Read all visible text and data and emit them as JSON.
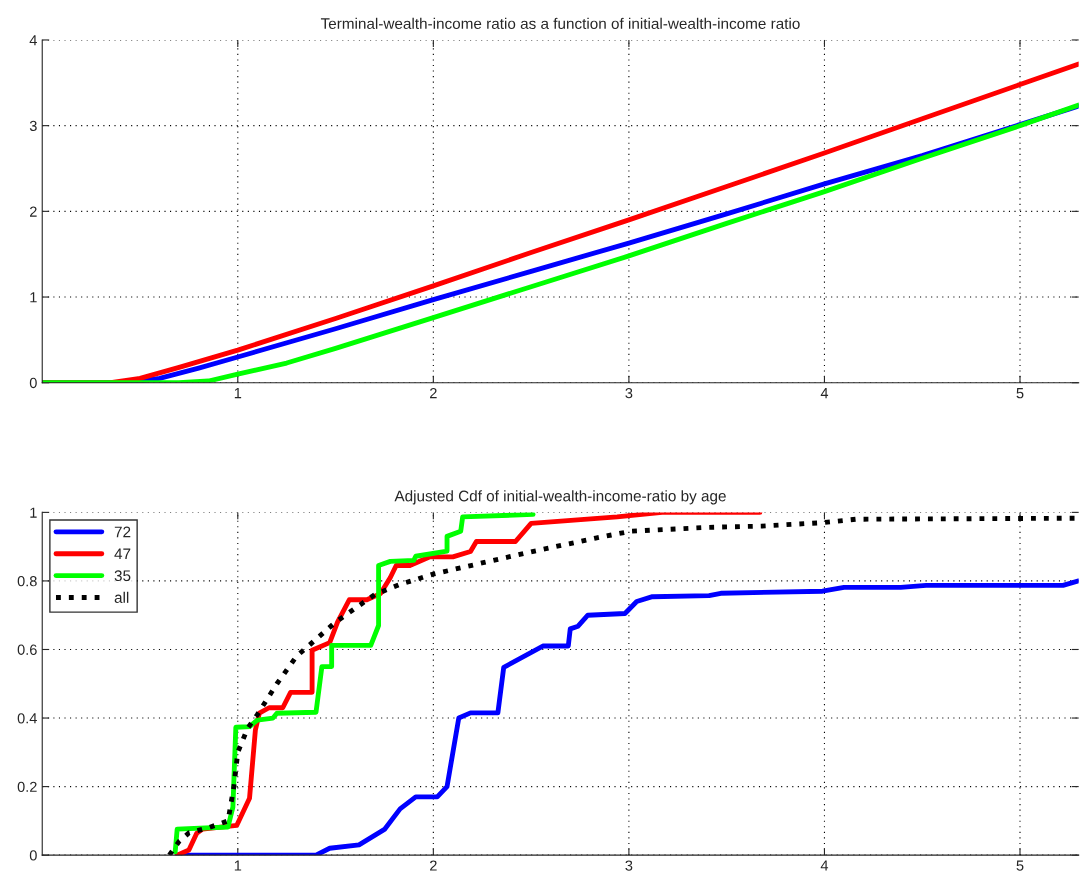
{
  "chart_data": [
    {
      "type": "line",
      "title": "Terminal-wealth-income ratio as a function of initial-wealth-income ratio",
      "xlim": [
        0,
        5.3
      ],
      "ylim": [
        0,
        4
      ],
      "xticks": [
        1,
        2,
        3,
        4,
        5
      ],
      "yticks": [
        0,
        1,
        2,
        3,
        4
      ],
      "grid": true,
      "legend": false,
      "series": [
        {
          "color": "#0000ff",
          "line_style": "solid",
          "x": [
            0,
            0.4,
            0.5,
            0.6,
            0.8,
            1,
            1.5,
            2,
            2.5,
            3,
            3.5,
            4,
            4.5,
            5.3
          ],
          "values": [
            0,
            0,
            0.02,
            0.05,
            0.17,
            0.3,
            0.63,
            0.97,
            1.3,
            1.63,
            1.97,
            2.32,
            2.65,
            3.23
          ]
        },
        {
          "color": "#ff0000",
          "line_style": "solid",
          "x": [
            0,
            0.35,
            0.5,
            0.7,
            1,
            1.5,
            2,
            2.5,
            3,
            3.5,
            4,
            4.5,
            5,
            5.3
          ],
          "values": [
            0,
            0,
            0.05,
            0.18,
            0.38,
            0.75,
            1.13,
            1.52,
            1.9,
            2.29,
            2.68,
            3.08,
            3.48,
            3.72
          ]
        },
        {
          "color": "#00ff00",
          "line_style": "solid",
          "x": [
            0,
            0.7,
            0.85,
            1,
            1.25,
            1.5,
            2,
            2.5,
            3,
            3.5,
            4,
            4.5,
            5,
            5.3
          ],
          "values": [
            0,
            0,
            0.02,
            0.1,
            0.23,
            0.4,
            0.76,
            1.12,
            1.48,
            1.86,
            2.23,
            2.62,
            3.0,
            3.24
          ]
        }
      ]
    },
    {
      "type": "line",
      "title": "Adjusted Cdf of initial-wealth-income-ratio by age",
      "xlim": [
        0,
        5.3
      ],
      "ylim": [
        0,
        1
      ],
      "xticks": [
        1,
        2,
        3,
        4,
        5
      ],
      "yticks": [
        0,
        0.2,
        0.4,
        0.6,
        0.8,
        1
      ],
      "grid": true,
      "legend": "top left",
      "series": [
        {
          "name": "72",
          "color": "#0000ff",
          "line_style": "solid",
          "x": [
            0.69,
            1.4,
            1.47,
            1.62,
            1.75,
            1.83,
            1.91,
            2.02,
            2.07,
            2.13,
            2.19,
            2.33,
            2.36,
            2.56,
            2.69,
            2.7,
            2.74,
            2.79,
            2.98,
            3.04,
            3.12,
            3.41,
            3.47,
            3.99,
            4.1,
            4.39,
            4.52,
            5.22,
            5.3
          ],
          "values": [
            0,
            0,
            0.02,
            0.03,
            0.075,
            0.135,
            0.17,
            0.17,
            0.2,
            0.4,
            0.415,
            0.415,
            0.548,
            0.61,
            0.61,
            0.66,
            0.668,
            0.7,
            0.705,
            0.74,
            0.754,
            0.757,
            0.764,
            0.77,
            0.781,
            0.781,
            0.787,
            0.787,
            0.8
          ]
        },
        {
          "name": "47",
          "color": "#ff0000",
          "line_style": "solid",
          "x": [
            0.69,
            0.75,
            0.79,
            0.82,
            0.995,
            1.06,
            1.09,
            1.11,
            1.16,
            1.23,
            1.27,
            1.38,
            1.38,
            1.47,
            1.51,
            1.57,
            1.66,
            1.73,
            1.78,
            1.81,
            1.88,
            1.98,
            2.1,
            2.19,
            2.22,
            2.42,
            2.5,
            2.94,
            3.17,
            3.67
          ],
          "values": [
            0,
            0.015,
            0.064,
            0.076,
            0.087,
            0.166,
            0.365,
            0.414,
            0.43,
            0.43,
            0.475,
            0.475,
            0.598,
            0.62,
            0.68,
            0.745,
            0.745,
            0.763,
            0.81,
            0.845,
            0.845,
            0.87,
            0.87,
            0.886,
            0.915,
            0.915,
            0.968,
            0.987,
            1.0,
            1.0
          ]
        },
        {
          "name": "35",
          "color": "#00ff00",
          "line_style": "solid",
          "x": [
            0.68,
            0.69,
            0.95,
            0.975,
            0.99,
            1.06,
            1.1,
            1.18,
            1.2,
            1.4,
            1.43,
            1.48,
            1.48,
            1.68,
            1.72,
            1.72,
            1.78,
            1.9,
            1.91,
            2.07,
            2.07,
            2.14,
            2.15,
            2.51
          ],
          "values": [
            0.01,
            0.076,
            0.082,
            0.14,
            0.373,
            0.375,
            0.394,
            0.4,
            0.414,
            0.417,
            0.55,
            0.55,
            0.612,
            0.612,
            0.67,
            0.845,
            0.857,
            0.86,
            0.872,
            0.887,
            0.93,
            0.945,
            0.987,
            0.994
          ]
        },
        {
          "name": "all",
          "color": "#000000",
          "line_style": "dotted",
          "x": [
            0.65,
            0.7,
            0.75,
            0.85,
            0.95,
            0.98,
            1.0,
            1.05,
            1.1,
            1.2,
            1.3,
            1.4,
            1.5,
            1.6,
            1.7,
            1.83,
            2.0,
            2.5,
            2.83,
            3.01,
            3.39,
            3.68,
            3.99,
            4.16,
            5.3
          ],
          "values": [
            0,
            0.04,
            0.065,
            0.08,
            0.1,
            0.2,
            0.3,
            0.37,
            0.41,
            0.5,
            0.58,
            0.63,
            0.68,
            0.72,
            0.76,
            0.79,
            0.82,
            0.885,
            0.925,
            0.945,
            0.956,
            0.96,
            0.97,
            0.98,
            0.983
          ]
        }
      ]
    }
  ]
}
